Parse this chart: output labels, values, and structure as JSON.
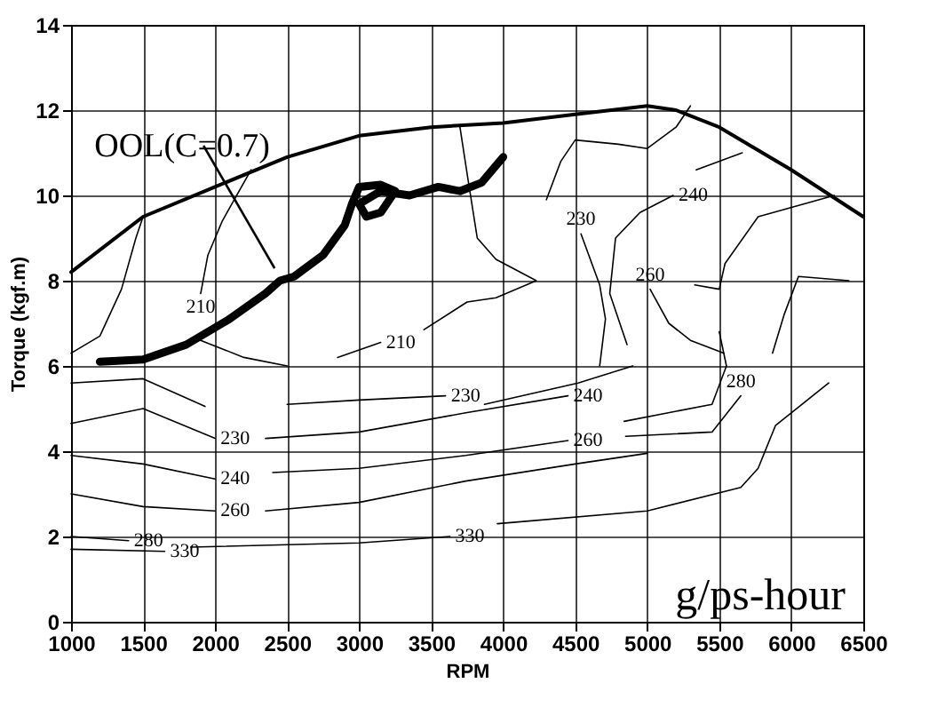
{
  "chart_data": {
    "type": "line",
    "xlabel": "RPM",
    "ylabel": "Torque (kgf.m)",
    "xlim": [
      1000,
      6500
    ],
    "xticks": [
      1000,
      1500,
      2000,
      2500,
      3000,
      3500,
      4000,
      4500,
      5000,
      5500,
      6000,
      6500
    ],
    "ylim": [
      0,
      14
    ],
    "yticks": [
      0,
      2,
      4,
      6,
      8,
      10,
      12,
      14
    ],
    "grid": true,
    "marker": "none",
    "line_style": "solid",
    "series": [
      {
        "color": "#000000",
        "x": [
          1000,
          1500,
          2000,
          2500,
          3000,
          3500,
          4000,
          4500,
          5000,
          5200,
          5500,
          6000,
          6500
        ],
        "values": [
          8.2,
          9.5,
          10.2,
          10.9,
          11.4,
          11.6,
          11.7,
          11.9,
          12.1,
          12.0,
          11.6,
          10.6,
          9.5
        ]
      },
      {
        "name": "OOL(C=0.7)",
        "color": "#000000",
        "x": [
          1200,
          1500,
          1800,
          2100,
          2350,
          2450,
          2550,
          2750,
          2900,
          2950,
          3000,
          3150,
          3250,
          3150,
          3050,
          3000,
          3150,
          3350,
          3550,
          3700,
          3850,
          4000
        ],
        "values": [
          6.1,
          6.15,
          6.5,
          7.1,
          7.7,
          8.0,
          8.1,
          8.6,
          9.3,
          9.8,
          10.2,
          10.25,
          10.1,
          9.6,
          9.5,
          9.8,
          10.1,
          10.0,
          10.2,
          10.1,
          10.3,
          10.9
        ]
      },
      {
        "color": "#000000",
        "x": [
          1000,
          1200,
          1350,
          1450,
          1500
        ],
        "values": [
          6.3,
          6.7,
          7.8,
          9.0,
          9.5
        ]
      },
      {
        "name": "210",
        "color": "#000000",
        "x": [
          2250,
          2050,
          1950,
          1900
        ],
        "values": [
          10.6,
          9.4,
          8.6,
          7.7
        ]
      },
      {
        "color": "#000000",
        "x": [
          1900,
          2200,
          2500
        ],
        "values": [
          6.6,
          6.2,
          6.0
        ]
      },
      {
        "name": "210",
        "color": "#000000",
        "x": [
          2850,
          3150
        ],
        "values": [
          6.2,
          6.55
        ]
      },
      {
        "color": "#000000",
        "x": [
          3450,
          3750,
          3950,
          4230,
          3950,
          3820,
          3750,
          3700
        ],
        "values": [
          6.85,
          7.5,
          7.6,
          8.0,
          8.5,
          9.0,
          10.5,
          11.6
        ]
      },
      {
        "color": "#000000",
        "x": [
          4300,
          4400,
          4500,
          4800,
          5000,
          5200,
          5300
        ],
        "values": [
          9.9,
          10.8,
          11.3,
          11.2,
          11.1,
          11.6,
          12.1
        ]
      },
      {
        "color": "#000000",
        "x": [
          5340,
          5660
        ],
        "values": [
          10.6,
          11.0
        ]
      },
      {
        "name": "240",
        "color": "#000000",
        "x": [
          4860,
          4740,
          4780,
          4950,
          5180
        ],
        "values": [
          6.5,
          7.7,
          9.0,
          9.6,
          10.0
        ]
      },
      {
        "name": "230",
        "color": "#000000",
        "x": [
          4670,
          4710,
          4670,
          4540
        ],
        "values": [
          6.0,
          7.1,
          7.9,
          9.1
        ]
      },
      {
        "name": "260",
        "color": "#000000",
        "x": [
          5530,
          5300,
          5150,
          5020
        ],
        "values": [
          6.3,
          6.6,
          7.0,
          7.8
        ]
      },
      {
        "color": "#000000",
        "x": [
          5330,
          5500,
          5540,
          5770,
          6300
        ],
        "values": [
          7.9,
          7.8,
          8.4,
          9.5,
          10.0
        ]
      },
      {
        "color": "#000000",
        "x": [
          5870,
          5950,
          6050,
          6400
        ],
        "values": [
          6.3,
          7.2,
          8.1,
          8.0
        ]
      },
      {
        "color": "#000000",
        "x": [
          1000,
          1500,
          1930
        ],
        "values": [
          5.6,
          5.7,
          5.05
        ]
      },
      {
        "name": "230",
        "color": "#000000",
        "x": [
          2500,
          3000,
          3600
        ],
        "values": [
          5.1,
          5.2,
          5.3
        ]
      },
      {
        "color": "#000000",
        "x": [
          3870,
          4520,
          4900
        ],
        "values": [
          5.1,
          5.6,
          6.0
        ]
      },
      {
        "name": "230",
        "color": "#000000",
        "x": [
          1000,
          1500,
          2000
        ],
        "values": [
          4.65,
          5.0,
          4.3
        ]
      },
      {
        "name": "240",
        "color": "#000000",
        "x": [
          2350,
          3000,
          3740,
          4450
        ],
        "values": [
          4.3,
          4.45,
          4.9,
          5.3
        ]
      },
      {
        "color": "#000000",
        "x": [
          4840,
          5450,
          5550,
          5500
        ],
        "values": [
          4.7,
          5.1,
          6.0,
          6.8
        ]
      },
      {
        "name": "240",
        "color": "#000000",
        "x": [
          1000,
          1500,
          2000
        ],
        "values": [
          3.9,
          3.7,
          3.35
        ]
      },
      {
        "name": "260",
        "color": "#000000",
        "x": [
          2400,
          3000,
          3740,
          4450
        ],
        "values": [
          3.5,
          3.6,
          3.9,
          4.25
        ]
      },
      {
        "name": "280",
        "color": "#000000",
        "x": [
          4850,
          5450,
          5650
        ],
        "values": [
          4.35,
          4.45,
          5.3
        ]
      },
      {
        "name": "260",
        "color": "#000000",
        "x": [
          1000,
          1500,
          2000
        ],
        "values": [
          3.0,
          2.7,
          2.6
        ]
      },
      {
        "color": "#000000",
        "x": [
          2350,
          3000,
          3740,
          4500,
          5000
        ],
        "values": [
          2.6,
          2.8,
          3.3,
          3.7,
          3.95
        ]
      },
      {
        "name": "280",
        "color": "#000000",
        "x": [
          1000,
          1400
        ],
        "values": [
          2.0,
          1.9
        ]
      },
      {
        "name": "330",
        "color": "#000000",
        "x": [
          1000,
          1650
        ],
        "values": [
          1.7,
          1.65
        ]
      },
      {
        "name": "330",
        "color": "#000000",
        "x": [
          1830,
          3000,
          3630
        ],
        "values": [
          1.75,
          1.85,
          2.0
        ]
      },
      {
        "color": "#000000",
        "x": [
          3960,
          5000,
          5650,
          5770,
          5890,
          6260
        ],
        "values": [
          2.3,
          2.6,
          3.15,
          3.6,
          4.6,
          5.6
        ]
      }
    ],
    "annotations": [
      "g/ps-hour"
    ]
  }
}
